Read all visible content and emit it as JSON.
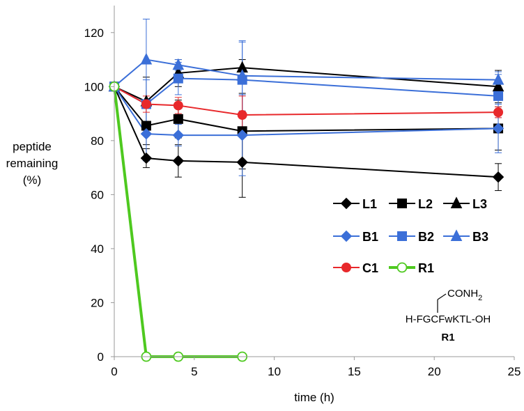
{
  "chart_data": {
    "type": "line",
    "title": "",
    "xlabel": "time (h)",
    "ylabel_lines": [
      "peptide",
      "remaining",
      "(%)"
    ],
    "xlim": [
      0,
      25
    ],
    "ylim": [
      0,
      130
    ],
    "xticks": [
      0,
      5,
      10,
      15,
      20,
      25
    ],
    "yticks": [
      0,
      20,
      40,
      60,
      80,
      100,
      120
    ],
    "grid": false,
    "legend_position": "right",
    "series": [
      {
        "name": "L1",
        "color": "#000000",
        "marker": "diamond",
        "fill": true,
        "x": [
          0,
          2,
          4,
          8,
          24
        ],
        "values": [
          100,
          73.5,
          72.5,
          72,
          66.5
        ],
        "err": [
          0,
          3.5,
          6,
          13,
          5
        ]
      },
      {
        "name": "L2",
        "color": "#000000",
        "marker": "square",
        "fill": true,
        "x": [
          0,
          2,
          4,
          8,
          24
        ],
        "values": [
          100,
          85.5,
          88,
          83.5,
          84.5
        ],
        "err": [
          0,
          7,
          7,
          14,
          8
        ]
      },
      {
        "name": "L3",
        "color": "#000000",
        "marker": "triangle",
        "fill": true,
        "x": [
          0,
          2,
          4,
          8,
          24
        ],
        "values": [
          100,
          94.5,
          105,
          107,
          100
        ],
        "err": [
          0,
          9,
          5,
          3,
          6
        ]
      },
      {
        "name": "B1",
        "color": "#3b6fd8",
        "marker": "diamond",
        "fill": true,
        "x": [
          0,
          2,
          4,
          8,
          24
        ],
        "values": [
          100,
          82.5,
          82,
          82,
          84.5
        ],
        "err": [
          0,
          10,
          4,
          15,
          9
        ]
      },
      {
        "name": "B2",
        "color": "#3b6fd8",
        "marker": "square",
        "fill": true,
        "x": [
          0,
          2,
          4,
          8,
          24
        ],
        "values": [
          100,
          93.5,
          103,
          102.5,
          96.5
        ],
        "err": [
          0,
          9,
          6,
          14,
          8
        ]
      },
      {
        "name": "B3",
        "color": "#3b6fd8",
        "marker": "triangle",
        "fill": true,
        "x": [
          0,
          2,
          4,
          8,
          24
        ],
        "values": [
          100,
          110,
          108,
          104,
          102.5
        ],
        "err": [
          0,
          15,
          2,
          13,
          3
        ]
      },
      {
        "name": "C1",
        "color": "#e8282b",
        "marker": "circle",
        "fill": true,
        "x": [
          0,
          2,
          4,
          8,
          24
        ],
        "values": [
          100,
          93.5,
          93,
          89.5,
          90.5
        ],
        "err": [
          0,
          3,
          3,
          7,
          2
        ]
      },
      {
        "name": "R1",
        "color": "#4ec91f",
        "marker": "circle",
        "fill": false,
        "x": [
          0,
          2,
          4,
          8
        ],
        "values": [
          100,
          0,
          0,
          0
        ],
        "err": [
          0,
          0,
          0,
          0
        ]
      }
    ],
    "annotation": {
      "side_chain": "CONH",
      "side_chain_sub": "2",
      "sequence": "H-FGCFwKTL-OH",
      "label": "R1"
    }
  }
}
